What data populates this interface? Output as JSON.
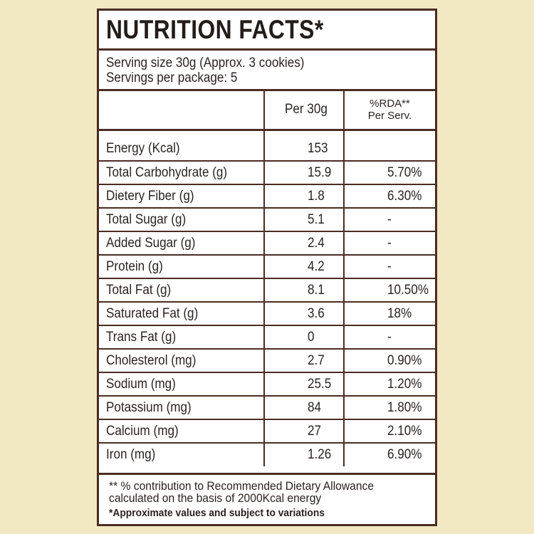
{
  "title": "NUTRITION FACTS*",
  "serving": {
    "size": "Serving size 30g (Approx. 3 cookies)",
    "per_package": "Servings per package: 5"
  },
  "header": {
    "per": "Per 30g",
    "rda_line1": "%RDA**",
    "rda_line2": "Per Serv."
  },
  "rows": [
    {
      "name": "Energy (Kcal)",
      "per": "153",
      "rda": ""
    },
    {
      "name": "Total Carbohydrate (g)",
      "per": "15.9",
      "rda": "5.70%"
    },
    {
      "name": "Dietery Fiber (g)",
      "per": "1.8",
      "rda": "6.30%"
    },
    {
      "name": "Total Sugar (g)",
      "per": "5.1",
      "rda": "-"
    },
    {
      "name": "Added Sugar (g)",
      "per": "2.4",
      "rda": "-"
    },
    {
      "name": "Protein (g)",
      "per": "4.2",
      "rda": "-"
    },
    {
      "name": "Total Fat (g)",
      "per": "8.1",
      "rda": "10.50%"
    },
    {
      "name": "Saturated Fat (g)",
      "per": "3.6",
      "rda": "18%"
    },
    {
      "name": "Trans Fat (g)",
      "per": "0",
      "rda": "-"
    },
    {
      "name": "Cholesterol (mg)",
      "per": "2.7",
      "rda": "0.90%"
    },
    {
      "name": "Sodium (mg)",
      "per": "25.5",
      "rda": "1.20%"
    },
    {
      "name": "Potassium (mg)",
      "per": "84",
      "rda": "1.80%"
    },
    {
      "name": "Calcium (mg)",
      "per": "27",
      "rda": "2.10%"
    },
    {
      "name": "Iron (mg)",
      "per": "1.26",
      "rda": "6.90%"
    }
  ],
  "footer": {
    "line1": "** % contribution to Recommended Dietary Allowance",
    "line2": "calculated on the basis of 2000Kcal energy",
    "line3": "*Approximate values and subject to variations"
  },
  "colors": {
    "background": "#f2e8c3",
    "border": "#4a2c22",
    "panel": "#ffffff",
    "text": "#2b2320"
  }
}
